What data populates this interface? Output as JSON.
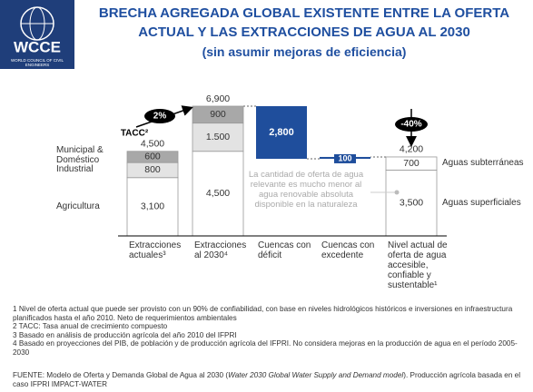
{
  "logo": {
    "name": "WCCE",
    "subtitle": "WORLD COUNCIL OF CIVIL ENGINEERS"
  },
  "chart_data": {
    "type": "waterfall",
    "title": [
      "BRECHA AGREGADA GLOBAL EXISTENTE ENTRE LA OFERTA",
      "ACTUAL Y LAS EXTRACCIONES DE AGUA AL 2030",
      "(sin asumir mejoras de eficiencia)"
    ],
    "categories": [
      "Extracciones actuales³",
      "Extracciones al 2030⁴",
      "Cuencas con déficit",
      "Cuencas con excedente",
      "Nivel actual de oferta de agua accesible, confiable y sustentable¹"
    ],
    "bars": [
      {
        "segments": [
          {
            "name": "Agricultura",
            "value": 3100,
            "value_label": "3,100",
            "color": "#ffffff"
          },
          {
            "name": "Industrial",
            "value": 800,
            "value_label": "800",
            "color": "#e3e3e3"
          },
          {
            "name": "Municipal & Doméstico",
            "value": 600,
            "value_label": "600",
            "color": "#a8a8a8"
          }
        ],
        "total": 4500,
        "total_label": "4,500",
        "names_side": "left"
      },
      {
        "segments": [
          {
            "value": 4500,
            "value_label": "4,500",
            "color": "#ffffff"
          },
          {
            "value": 1500,
            "value_label": "1.500",
            "color": "#e3e3e3"
          },
          {
            "value": 900,
            "value_label": "900",
            "color": "#a8a8a8"
          }
        ],
        "total": 6900,
        "total_label": "6,900"
      },
      {
        "segments": [
          {
            "value": 2800,
            "value_label": "2,800",
            "color": "#1f4e9c"
          }
        ],
        "anchor": "previous"
      },
      {
        "segments": [
          {
            "value": 100,
            "color": "#1f4e9c"
          }
        ],
        "anchor": "next"
      },
      {
        "segments": [
          {
            "name": "Aguas superficiales",
            "value": 3500,
            "value_label": "3,500",
            "color": "#ffffff"
          },
          {
            "name": "Aguas subterráneas",
            "value": 700,
            "value_label": "700",
            "color": "#ffffff"
          }
        ],
        "total": 4200,
        "total_label": "4,200",
        "names_side": "right"
      }
    ],
    "annotations": {
      "growth": "2%",
      "growth_label": "TACC²",
      "gap": "-40%",
      "note": "La cantidad de oferta de agua relevante es mucho menor al agua renovable absoluta disponible en la naturaleza"
    }
  },
  "footnotes": [
    "1 Nivel de oferta actual que puede ser provisto con un 90% de confiabilidad, con base en niveles hidrológicos históricos e inversiones en infraestructura planificados hasta el año 2010. Neto de requerimientos ambientales",
    "2 TACC: Tasa anual de crecimiento compuesto",
    "3 Basado en análisis de producción agrícola del año 2010 del IFPRI",
    "4 Basado en proyecciones del PIB, de población y de producción agrícola del IFPRI.  No considera mejoras en la producción de agua en el período 2005-2030"
  ],
  "source": {
    "prefix": "FUENTE: Modelo de Oferta y Demanda Global de Agua al 2030 (",
    "italic": "Water 2030 Global Water Supply and Demand model",
    "suffix": "). Producción agrícola basada en el caso IFPRI IMPACT-WATER"
  }
}
